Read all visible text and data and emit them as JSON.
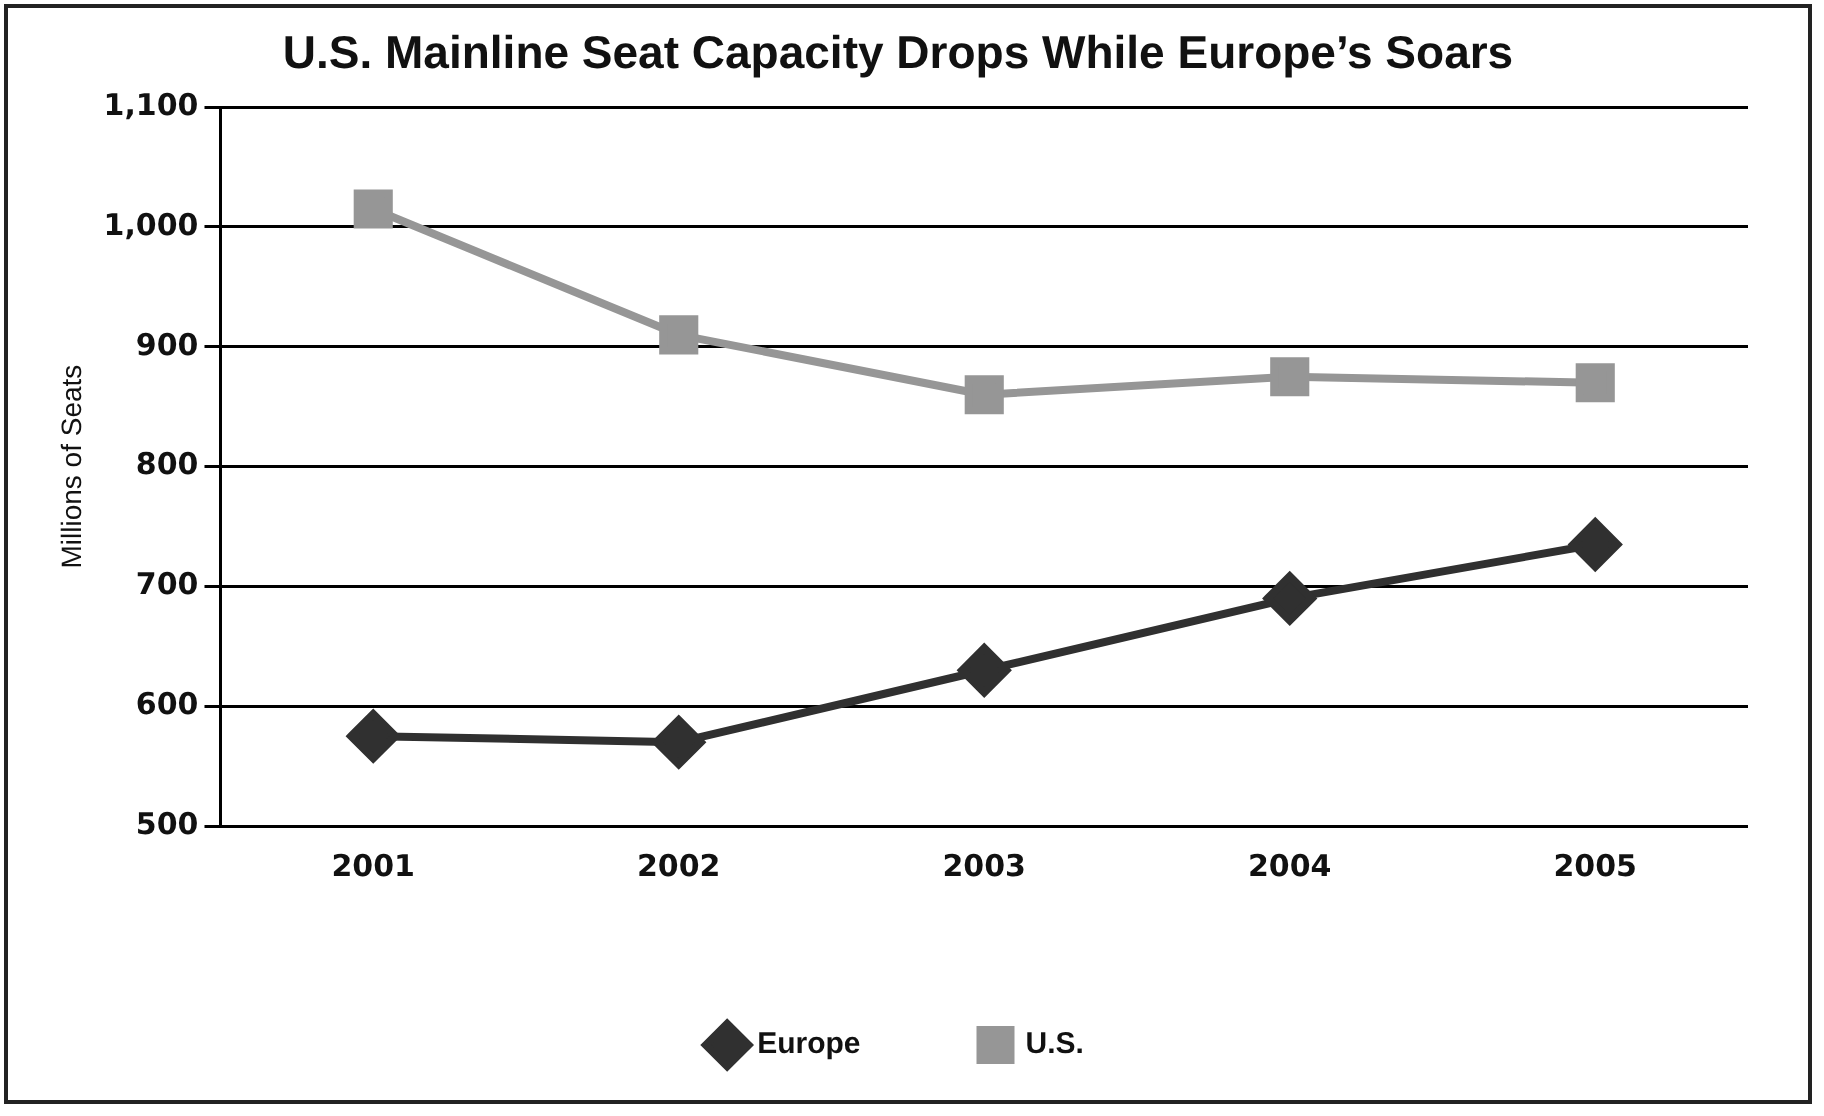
{
  "chart_data": {
    "type": "line",
    "title": "U.S. Mainline Seat Capacity Drops While Europe’s Soars",
    "ylabel": "Millions of Seats",
    "categories": [
      "2001",
      "2002",
      "2003",
      "2004",
      "2005"
    ],
    "series": [
      {
        "name": "Europe",
        "color": "#303030",
        "marker": "diamond",
        "values": [
          575,
          570,
          630,
          690,
          735
        ]
      },
      {
        "name": "U.S.",
        "color": "#969696",
        "marker": "square",
        "values": [
          1015,
          910,
          860,
          875,
          870
        ]
      }
    ],
    "ylim": [
      500,
      1100
    ],
    "yticks": [
      500,
      600,
      700,
      800,
      900,
      {
        "value": 1000,
        "label": "1,000"
      },
      {
        "value": 1100,
        "label": "1,100"
      }
    ],
    "grid": "y",
    "legend": "bottom",
    "line_style": "solid"
  }
}
